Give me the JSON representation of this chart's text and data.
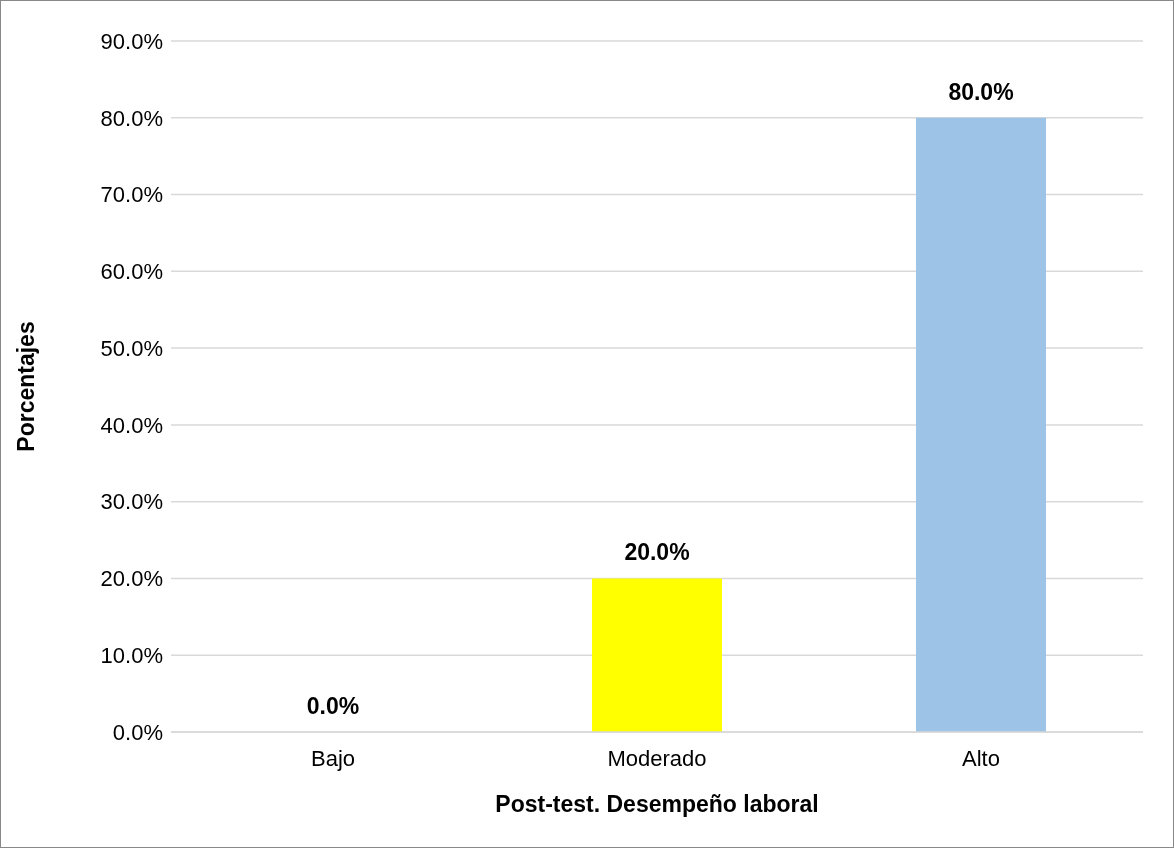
{
  "chart_data": {
    "type": "bar",
    "xlabel": "Post-test. Desempeño laboral",
    "ylabel": "Porcentajes",
    "categories": [
      "Bajo",
      "Moderado",
      "Alto"
    ],
    "values": [
      0,
      20,
      80
    ],
    "colors": [
      "#9dc3e6",
      "#ffff00",
      "#9dc3e6"
    ],
    "value_labels": [
      "0.0%",
      "20.0%",
      "80.0%"
    ],
    "ylim": [
      0,
      90
    ],
    "yticks": [
      {
        "value": 0,
        "label": "0.0%"
      },
      {
        "value": 10,
        "label": "10.0%"
      },
      {
        "value": 20,
        "label": "20.0%"
      },
      {
        "value": 30,
        "label": "30.0%"
      },
      {
        "value": 40,
        "label": "40.0%"
      },
      {
        "value": 50,
        "label": "50.0%"
      },
      {
        "value": 60,
        "label": "60.0%"
      },
      {
        "value": 70,
        "label": "70.0%"
      },
      {
        "value": 80,
        "label": "80.0%"
      },
      {
        "value": 90,
        "label": "90.0%"
      }
    ],
    "grid": "y",
    "legend": false
  }
}
